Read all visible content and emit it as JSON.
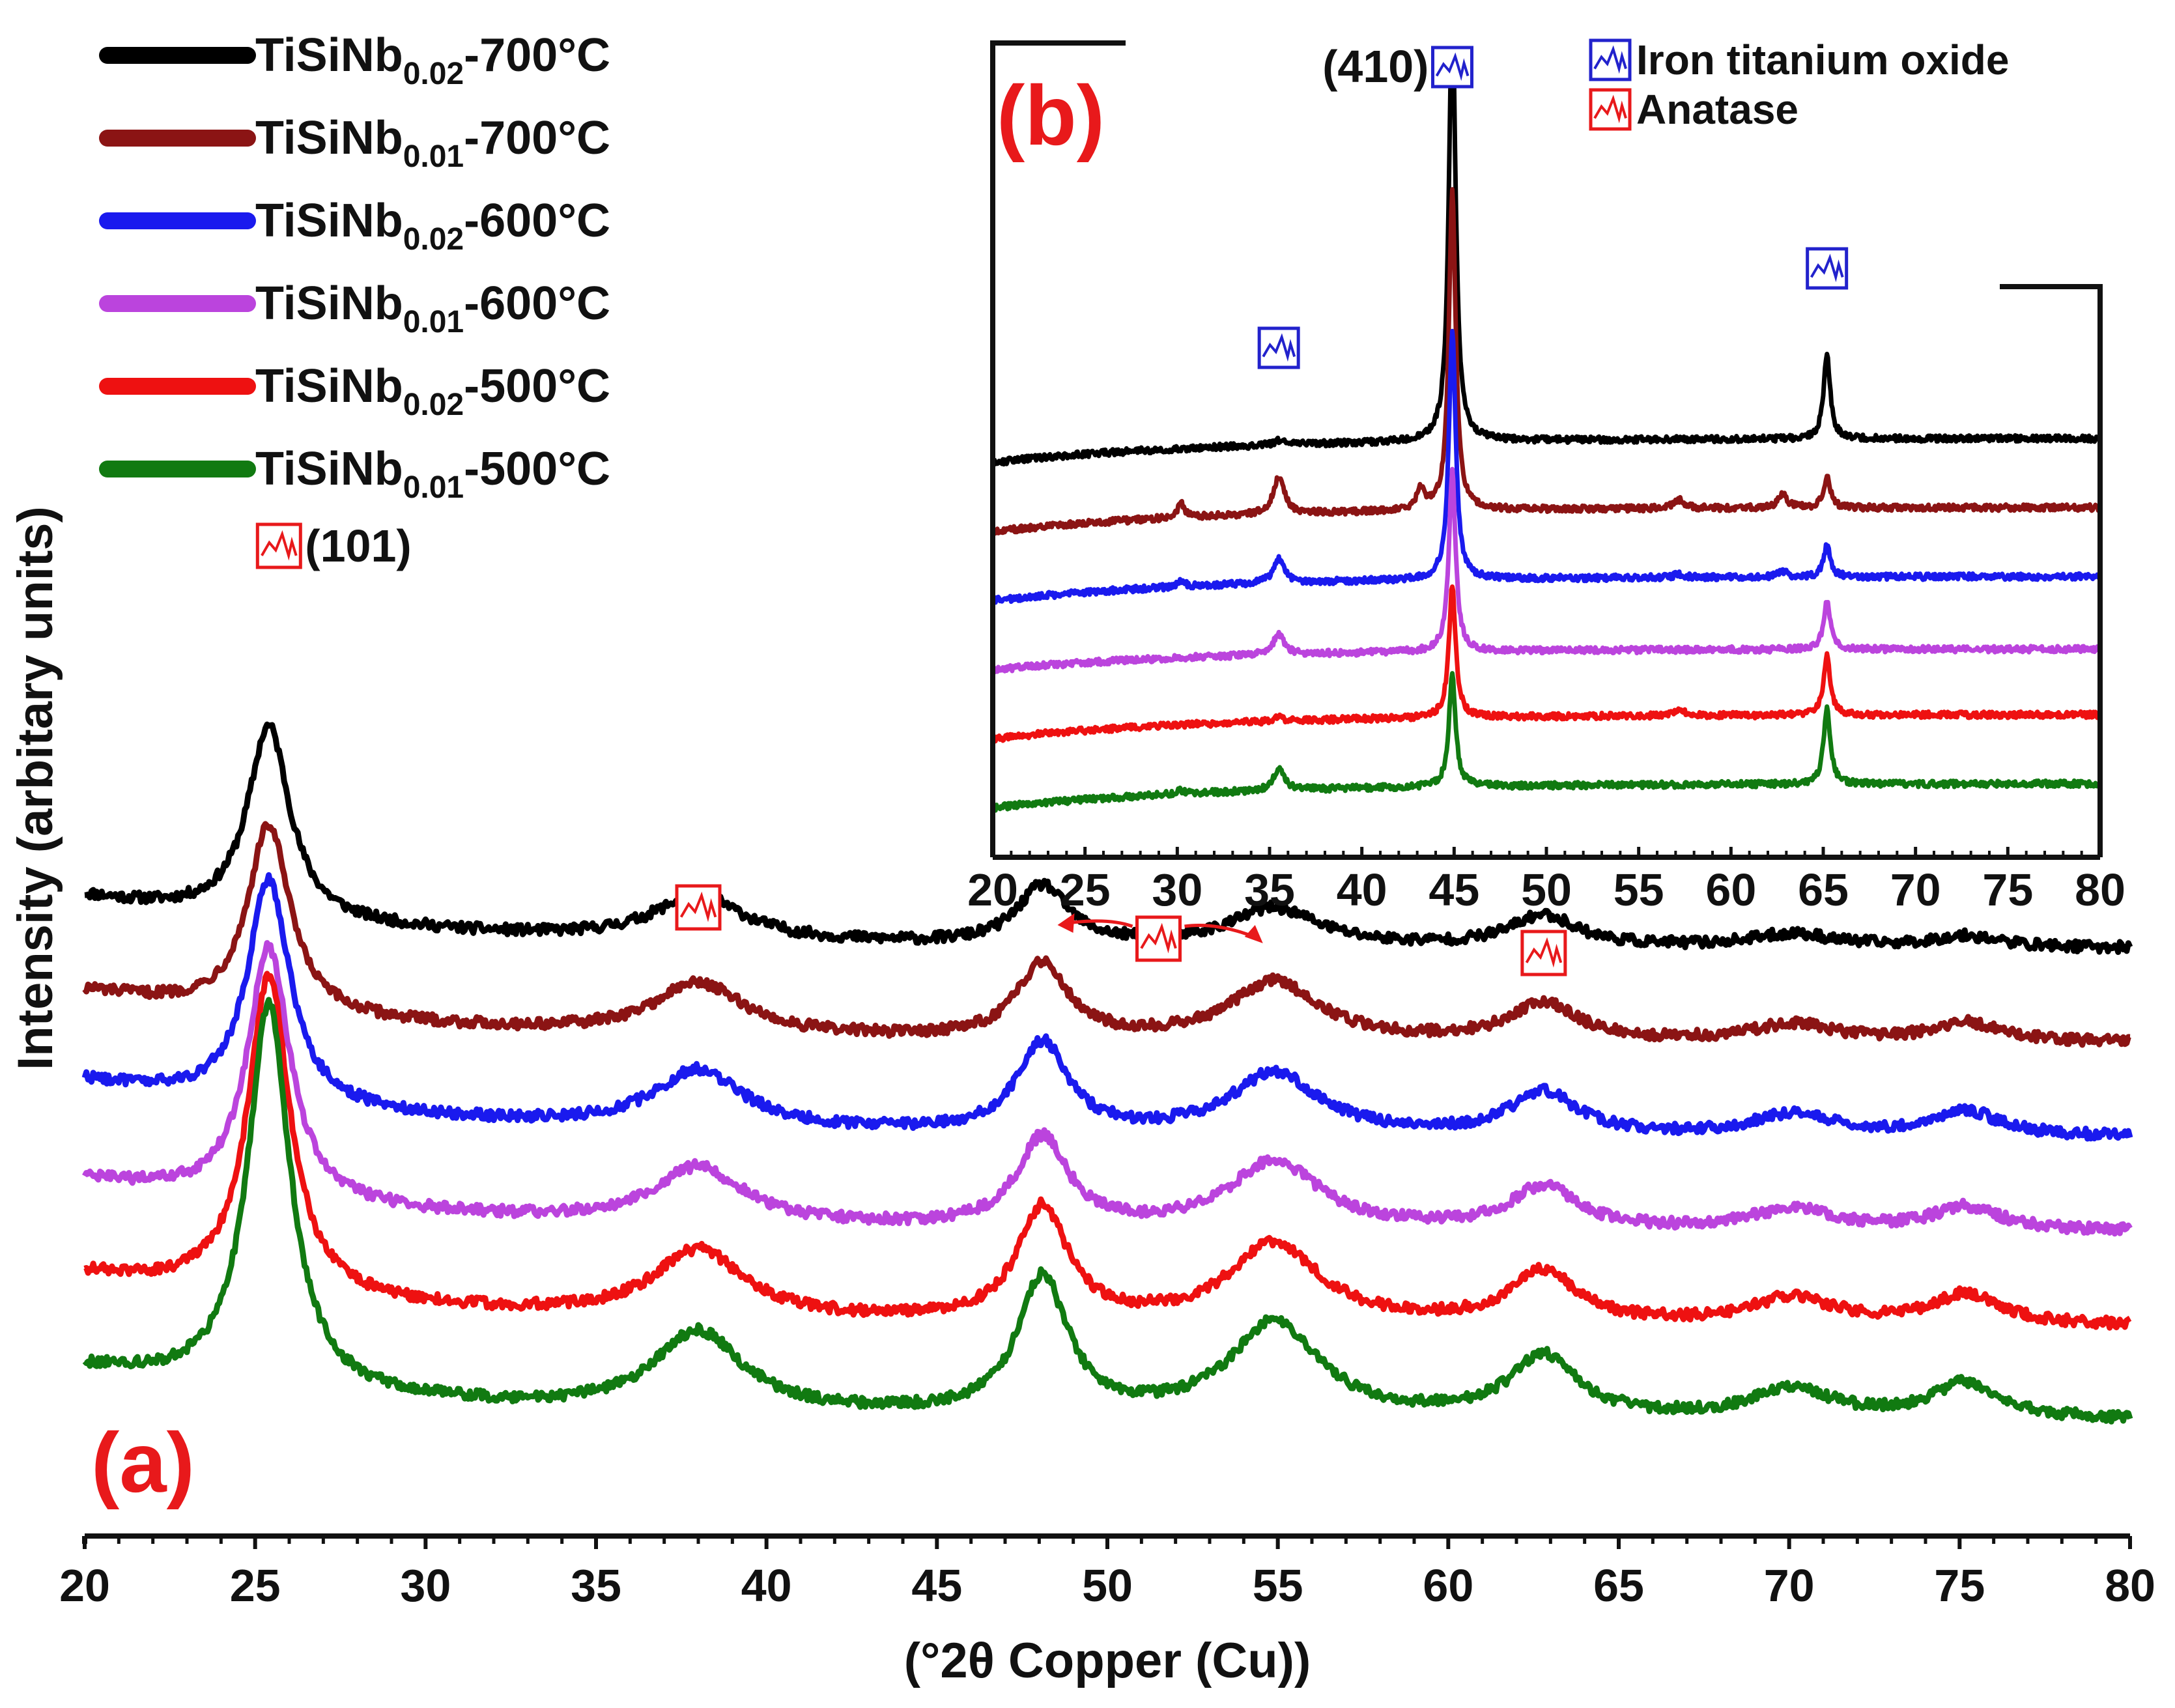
{
  "chart_data": [
    {
      "panel": "a",
      "type": "line",
      "panel_label": "(a)",
      "xlabel": "(°2θ Copper (Cu))",
      "ylabel": "Intensity (arbitary units)",
      "xlim": [
        20,
        80
      ],
      "x_ticks": [
        "20",
        "25",
        "30",
        "35",
        "40",
        "45",
        "50",
        "55",
        "60",
        "65",
        "70",
        "75",
        "80"
      ],
      "y_units": "arbitrary, vertically offset stack",
      "peaks": [
        25.4,
        38.0,
        48.1,
        54.9,
        62.8,
        70.1,
        75.2
      ],
      "peak_widths": [
        0.75,
        1.6,
        0.9,
        1.6,
        1.2,
        1.5,
        1.2
      ],
      "annotations": [
        {
          "text": "(101)",
          "x": 25.4,
          "phase": "Anatase"
        },
        {
          "text": "",
          "x": 38.0,
          "phase": "Anatase"
        },
        {
          "text": "",
          "x": 51.5,
          "phase": "Anatase",
          "note": "arrows to 48 and 55"
        },
        {
          "text": "",
          "x": 62.8,
          "phase": "Anatase"
        }
      ],
      "series": [
        {
          "base_name": "TiSiNb",
          "subscript": "0.02",
          "suffix": "-700°C",
          "color": "#000000",
          "offset": 5.0,
          "start": 0.75,
          "bg_amp": 0.55,
          "peak_amps": [
            2.05,
            0.48,
            0.62,
            0.4,
            0.33,
            0.14,
            0.12
          ]
        },
        {
          "base_name": "TiSiNb",
          "subscript": "0.01",
          "suffix": "-700°C",
          "color": "#8b1414",
          "offset": 4.0,
          "start": 0.75,
          "bg_amp": 0.55,
          "peak_amps": [
            2.0,
            0.55,
            0.8,
            0.62,
            0.4,
            0.18,
            0.2
          ]
        },
        {
          "base_name": "TiSiNb",
          "subscript": "0.02",
          "suffix": "-600°C",
          "color": "#1a1aee",
          "offset": 3.0,
          "start": 0.75,
          "bg_amp": 0.6,
          "peak_amps": [
            2.4,
            0.62,
            0.95,
            0.65,
            0.45,
            0.22,
            0.26
          ]
        },
        {
          "base_name": "TiSiNb",
          "subscript": "0.01",
          "suffix": "-600°C",
          "color": "#bb44dd",
          "offset": 2.0,
          "start": 0.75,
          "bg_amp": 0.55,
          "peak_amps": [
            2.7,
            0.6,
            0.95,
            0.72,
            0.45,
            0.22,
            0.25
          ]
        },
        {
          "base_name": "TiSiNb",
          "subscript": "0.02",
          "suffix": "-500°C",
          "color": "#ee1111",
          "offset": 1.0,
          "start": 0.75,
          "bg_amp": 0.55,
          "peak_amps": [
            3.4,
            0.72,
            1.2,
            0.85,
            0.55,
            0.28,
            0.32
          ]
        },
        {
          "base_name": "TiSiNb",
          "subscript": "0.01",
          "suffix": "-500°C",
          "color": "#117a11",
          "offset": 0.0,
          "start": 0.75,
          "bg_amp": 0.55,
          "peak_amps": [
            4.1,
            0.85,
            1.45,
            1.0,
            0.65,
            0.3,
            0.38
          ]
        }
      ]
    },
    {
      "panel": "b",
      "type": "line",
      "panel_label": "(b)",
      "xlim": [
        20,
        80
      ],
      "x_ticks": [
        "20",
        "25",
        "30",
        "35",
        "40",
        "45",
        "50",
        "55",
        "60",
        "65",
        "70",
        "75",
        "80"
      ],
      "legend": [
        {
          "label": "Iron titanium oxide",
          "color": "#2222cc"
        },
        {
          "label": "Anatase",
          "color": "#e8191b"
        }
      ],
      "annotations": [
        {
          "text": "(410)",
          "x": 44.9,
          "phase": "Iron titanium oxide"
        },
        {
          "text": "",
          "x": 35.5,
          "phase": "Iron titanium oxide"
        },
        {
          "text": "",
          "x": 65.2,
          "phase": "Iron titanium oxide"
        }
      ],
      "peaks": [
        30.2,
        35.5,
        43.2,
        44.9,
        57.2,
        62.8,
        65.2
      ],
      "peak_widths": [
        0.25,
        0.35,
        0.25,
        0.22,
        0.35,
        0.3,
        0.22
      ],
      "series": [
        {
          "color": "#000000",
          "offset": 5.0,
          "start": 0.0,
          "end": 0.35,
          "peak_amps": [
            0.0,
            0.06,
            0.0,
            6.2,
            0.0,
            0.0,
            1.2
          ]
        },
        {
          "color": "#8b1414",
          "offset": 4.0,
          "start": 0.0,
          "end": 0.35,
          "peak_amps": [
            0.2,
            0.55,
            0.3,
            4.6,
            0.12,
            0.2,
            0.45
          ]
        },
        {
          "color": "#1a1aee",
          "offset": 3.0,
          "start": 0.0,
          "end": 0.35,
          "peak_amps": [
            0.08,
            0.35,
            0.0,
            3.6,
            0.05,
            0.08,
            0.45
          ]
        },
        {
          "color": "#bb44dd",
          "offset": 2.0,
          "start": 0.0,
          "end": 0.3,
          "peak_amps": [
            0.0,
            0.3,
            0.0,
            2.6,
            0.0,
            0.0,
            0.7
          ]
        },
        {
          "color": "#ee1111",
          "offset": 1.0,
          "start": 0.0,
          "end": 0.35,
          "peak_amps": [
            0.0,
            0.05,
            0.0,
            1.9,
            0.1,
            0.0,
            0.85
          ]
        },
        {
          "color": "#117a11",
          "offset": 0.0,
          "start": 0.0,
          "end": 0.35,
          "peak_amps": [
            0.05,
            0.3,
            0.0,
            1.6,
            0.0,
            0.0,
            1.1
          ]
        }
      ]
    }
  ]
}
